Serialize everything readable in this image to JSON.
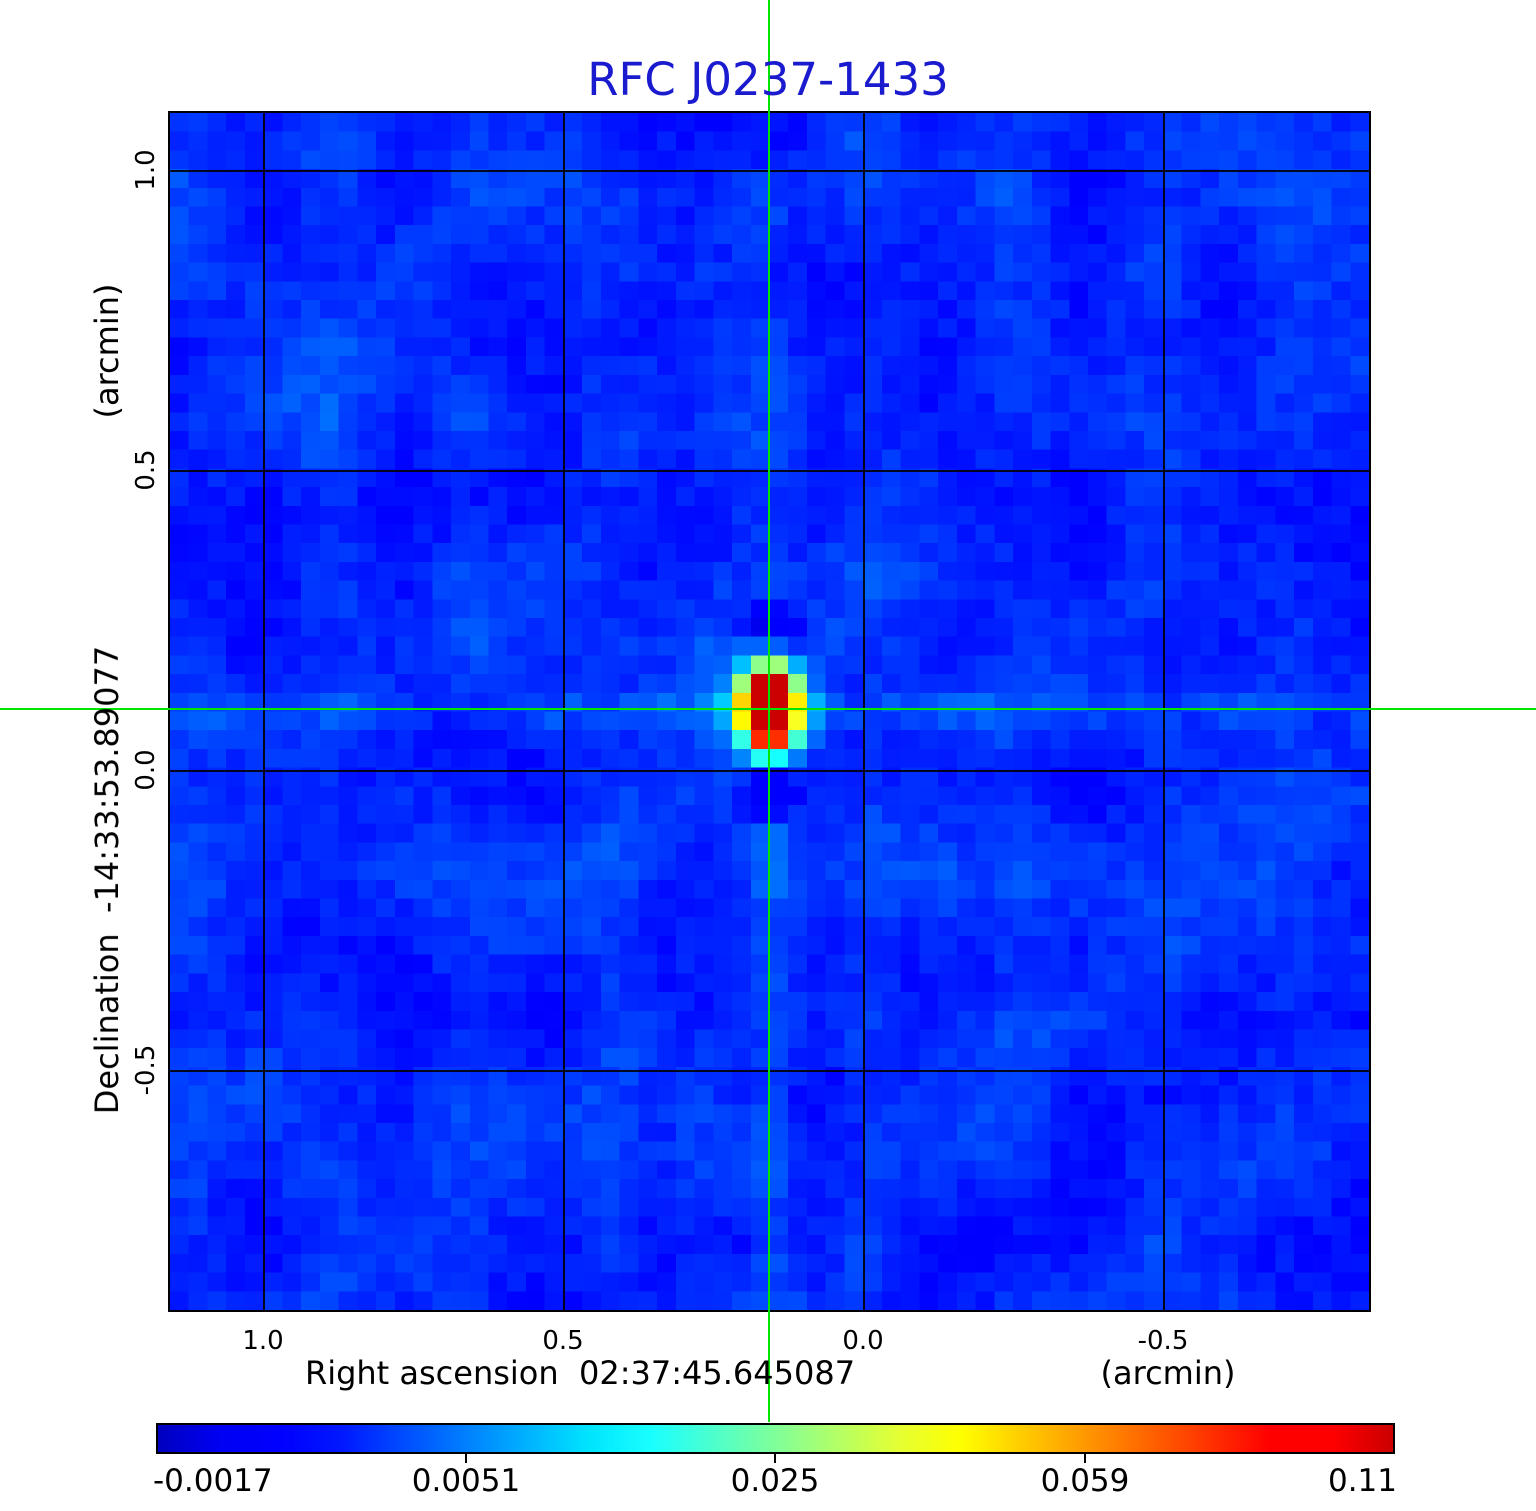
{
  "title": "RFC J0237-1433",
  "colors": {
    "title": "#1a1ace",
    "crosshair": "#00e600",
    "grid": "#000000",
    "frame": "#000000",
    "background": "#ffffff"
  },
  "x_axis": {
    "label": "Right ascension  02:37:45.645087",
    "unit": "(arcmin)",
    "ticks": [
      "1.0",
      "0.5",
      "0.0",
      "-0.5"
    ]
  },
  "y_axis": {
    "label": "Declination  -14:33:53.89077",
    "unit": "(arcmin)",
    "ticks": [
      "1.0",
      "0.5",
      "0.0",
      "-0.5"
    ]
  },
  "colorbar": {
    "tick_labels": [
      "-0.0017",
      "0.0051",
      "0.025",
      "0.059",
      "0.11"
    ]
  },
  "chart_data": {
    "type": "heatmap",
    "title": "RFC J0237-1433",
    "xlabel": "Right ascension 02:37:45.645087 (arcmin)",
    "ylabel": "Declination -14:33:53.89077 (arcmin)",
    "x_ticks": [
      1.0,
      0.5,
      0.0,
      -0.5
    ],
    "y_ticks": [
      1.0,
      0.5,
      0.0,
      -0.5
    ],
    "x_range": [
      1.17,
      -0.85
    ],
    "y_range": [
      -0.9,
      1.1
    ],
    "grid": true,
    "colormap": "jet",
    "colorbar_ticks": [
      -0.0017,
      0.0051,
      0.025,
      0.059,
      0.11
    ],
    "colorbar_scale": "nonlinear",
    "colorbar_position": "bottom",
    "grid_cells": 64,
    "crosshair": {
      "x_arcmin": 0.16,
      "y_arcmin": 0.1
    },
    "peak_source": {
      "x_arcmin": 0.16,
      "y_arcmin": 0.1,
      "peak_value_approx": 0.11,
      "shape": "compact, elongated north-south"
    },
    "background_character": "blue noise field near zero with faint horizontal and diagonal sidelobe streaks through the source"
  }
}
